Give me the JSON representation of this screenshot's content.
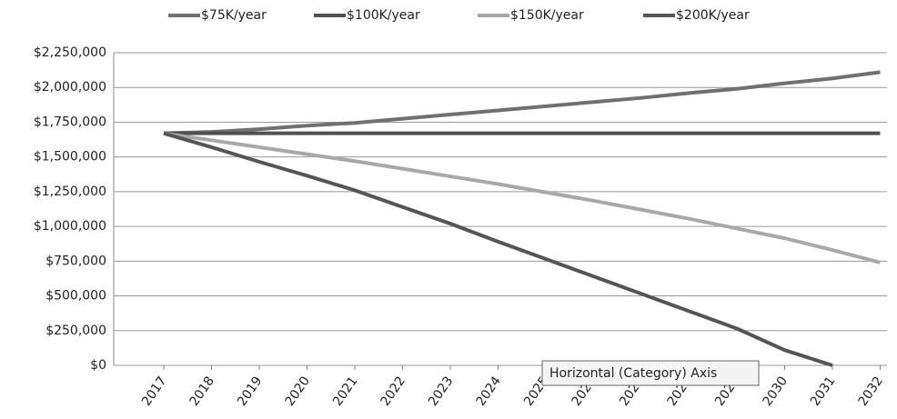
{
  "chart_data": {
    "type": "line",
    "categories": [
      "2017",
      "2018",
      "2019",
      "2020",
      "2021",
      "2022",
      "2023",
      "2024",
      "2025",
      "2026",
      "2027",
      "2028",
      "2029",
      "2030",
      "2031",
      "2032"
    ],
    "series": [
      {
        "name": "$75K/year",
        "color": "#707070",
        "values": [
          1670000,
          1680000,
          1700000,
          1725000,
          1745000,
          1775000,
          1805000,
          1835000,
          1865000,
          1895000,
          1925000,
          1960000,
          1990000,
          2030000,
          2065000,
          2110000
        ]
      },
      {
        "name": "$100K/year",
        "color": "#505050",
        "values": [
          1670000,
          1670000,
          1670000,
          1670000,
          1670000,
          1670000,
          1670000,
          1670000,
          1670000,
          1670000,
          1670000,
          1670000,
          1670000,
          1670000,
          1670000,
          1670000
        ]
      },
      {
        "name": "$150K/year",
        "color": "#a8a8a8",
        "values": [
          1670000,
          1620000,
          1570000,
          1520000,
          1470000,
          1415000,
          1360000,
          1305000,
          1245000,
          1185000,
          1120000,
          1055000,
          985000,
          915000,
          830000,
          740000
        ]
      },
      {
        "name": "$200K/year",
        "color": "#555555",
        "values": [
          1670000,
          1570000,
          1465000,
          1365000,
          1260000,
          1140000,
          1020000,
          890000,
          765000,
          640000,
          515000,
          390000,
          265000,
          110000,
          0,
          null
        ]
      }
    ],
    "ylim": [
      0,
      2250000
    ],
    "yticks": [
      {
        "value": 0,
        "label": "$0"
      },
      {
        "value": 250000,
        "label": "$250,000"
      },
      {
        "value": 500000,
        "label": "$500,000"
      },
      {
        "value": 750000,
        "label": "$750,000"
      },
      {
        "value": 1000000,
        "label": "$1,000,000"
      },
      {
        "value": 1250000,
        "label": "$1,250,000"
      },
      {
        "value": 1500000,
        "label": "$1,500,000"
      },
      {
        "value": 1750000,
        "label": "$1,750,000"
      },
      {
        "value": 2000000,
        "label": "$2,000,000"
      },
      {
        "value": 2250000,
        "label": "$2,250,000"
      }
    ],
    "grid": true,
    "legend": "top",
    "tooltip": "Horizontal (Category) Axis"
  }
}
